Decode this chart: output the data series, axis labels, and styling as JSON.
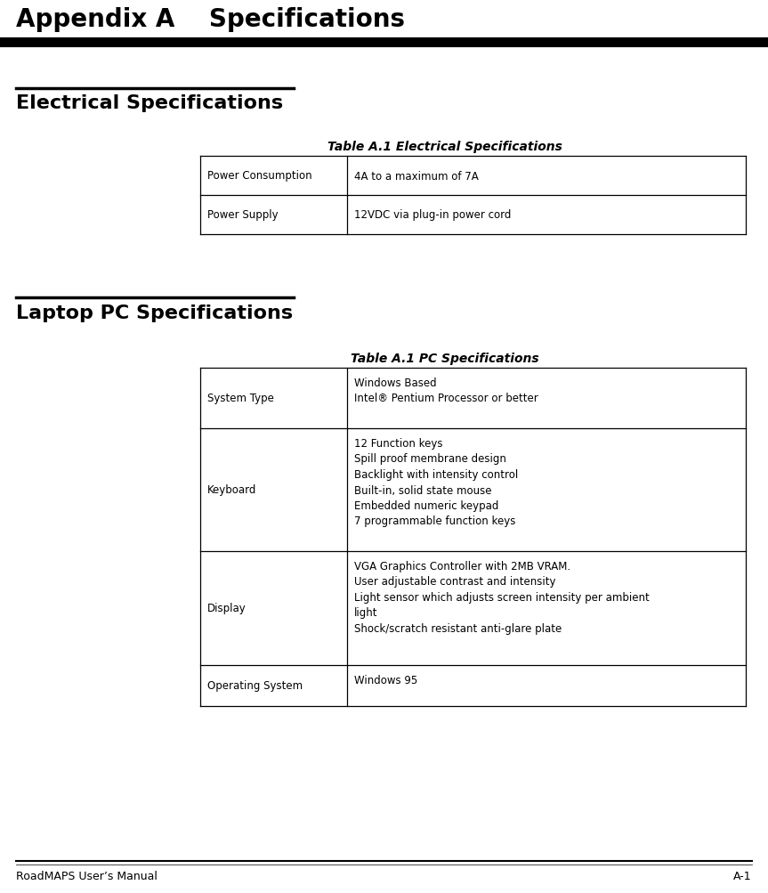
{
  "page_title": "Appendix A    Specifications",
  "footer_left": "RoadMAPS User’s Manual",
  "footer_right": "A-1",
  "section1_title": "Electrical Specifications",
  "table1_title": "Table A.1 Electrical Specifications",
  "table1_data": [
    [
      "Power Consumption",
      "4A to a maximum of 7A"
    ],
    [
      "Power Supply",
      "12VDC via plug-in power cord"
    ]
  ],
  "section2_title": "Laptop PC Specifications",
  "table2_title": "Table A.1 PC Specifications",
  "table2_data": [
    [
      "System Type",
      "Windows Based\nIntel® Pentium Processor or better"
    ],
    [
      "Keyboard",
      "12 Function keys\nSpill proof membrane design\nBacklight with intensity control\nBuilt-in, solid state mouse\nEmbedded numeric keypad\n7 programmable function keys"
    ],
    [
      "Display",
      "VGA Graphics Controller with 2MB VRAM.\nUser adjustable contrast and intensity\nLight sensor which adjusts screen intensity per ambient\nlight\nShock/scratch resistant anti-glare plate"
    ],
    [
      "Operating System",
      "Windows 95"
    ]
  ],
  "bg_color": "#ffffff",
  "text_color": "#000000"
}
